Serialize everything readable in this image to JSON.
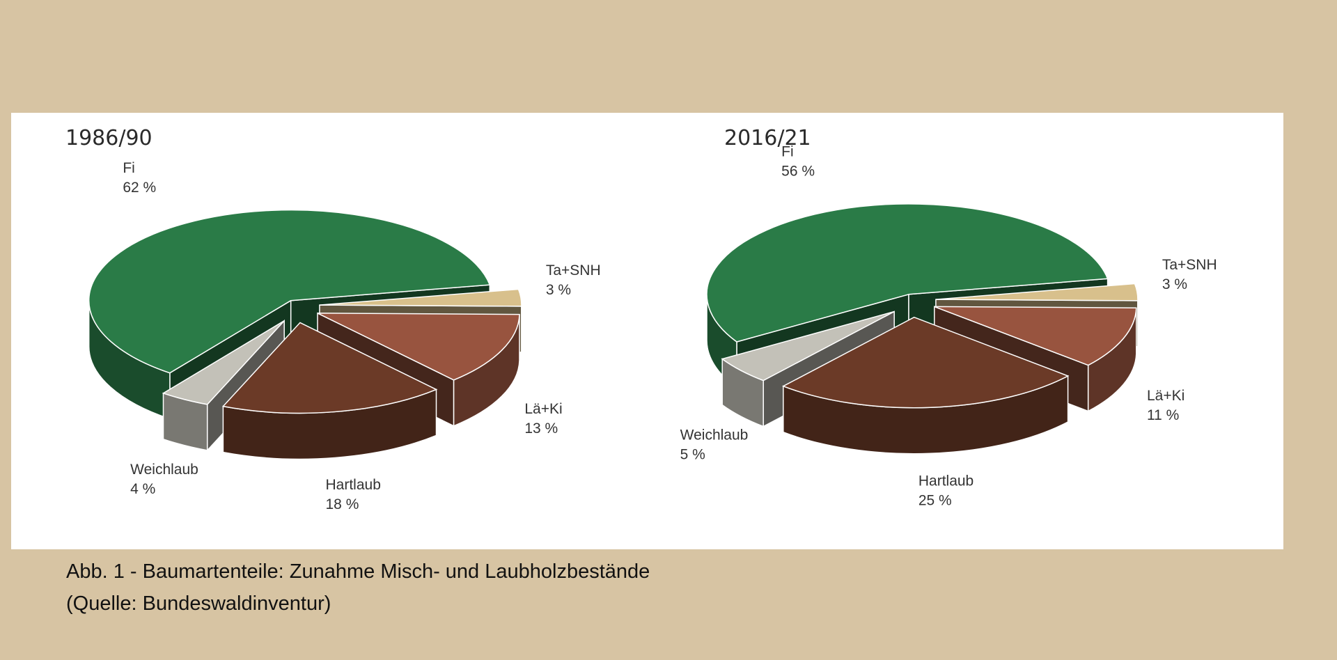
{
  "chart_data": [
    {
      "type": "pie3d",
      "title": "1986/90",
      "categories": [
        "Fi",
        "Ta+SNH",
        "Lä+Ki",
        "Hartlaub",
        "Weichlaub"
      ],
      "values": [
        62,
        3,
        13,
        18,
        4
      ],
      "value_labels": [
        "62 %",
        "3 %",
        "13 %",
        "18 %",
        "4 %"
      ],
      "colors": [
        "#2a7b47",
        "#d8c08c",
        "#98543f",
        "#6b3a27",
        "#c3c1b8"
      ]
    },
    {
      "type": "pie3d",
      "title": "2016/21",
      "categories": [
        "Fi",
        "Ta+SNH",
        "Lä+Ki",
        "Hartlaub",
        "Weichlaub"
      ],
      "values": [
        56,
        3,
        11,
        25,
        5
      ],
      "value_labels": [
        "56 %",
        "3 %",
        "11 %",
        "25 %",
        "5 %"
      ],
      "colors": [
        "#2a7b47",
        "#d8c08c",
        "#98543f",
        "#6b3a27",
        "#c3c1b8"
      ]
    }
  ],
  "caption": [
    "Abb. 1 - Baumartenteile: Zunahme Misch- und Laubholzbestände",
    "(Quelle: Bundeswaldinventur)"
  ]
}
